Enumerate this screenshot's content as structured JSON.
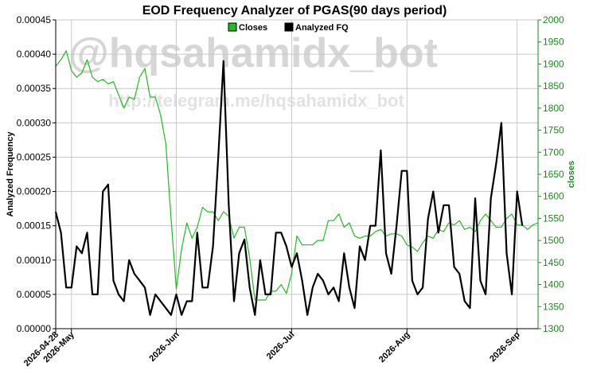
{
  "watermark": {
    "handle": "@hqsahamidx_bot",
    "url": "http://telegram.me/hqsahamidx_bot"
  },
  "colors": {
    "closes": "#22bb22",
    "fq": "#000000",
    "grid": "#c8c8c8",
    "right_axis": "#1a8a1a"
  },
  "chart_data": {
    "type": "line",
    "title": "EOD Frequency Analyzer of PGAS(90 days period)",
    "ylabel": "Analyzed Frequency",
    "ylabel_right": "closes",
    "ylim": [
      0,
      0.00045
    ],
    "ylim_right": [
      1300,
      2000
    ],
    "yticks": [
      "0.00000",
      "0.00005",
      "0.00010",
      "0.00015",
      "0.00020",
      "0.00025",
      "0.00030",
      "0.00035",
      "0.00040",
      "0.00045"
    ],
    "yticks_right": [
      "1300",
      "1350",
      "1400",
      "1450",
      "1500",
      "1550",
      "1600",
      "1650",
      "1700",
      "1750",
      "1800",
      "1850",
      "1900",
      "1950",
      "2000"
    ],
    "xticks": [
      {
        "label": "2026-04-28",
        "index": 0
      },
      {
        "label": "2026-May",
        "index": 3
      },
      {
        "label": "2026-Jun",
        "index": 23
      },
      {
        "label": "2026-Jul",
        "index": 45
      },
      {
        "label": "2026-Aug",
        "index": 67
      },
      {
        "label": "2026-Sep",
        "index": 88
      }
    ],
    "legend": [
      "Closes",
      "Analyzed FQ"
    ],
    "legend_position": "top-center",
    "grid": true,
    "series": [
      {
        "name": "Closes",
        "axis": "right",
        "values": [
          1895,
          1910,
          1930,
          1885,
          1870,
          1880,
          1910,
          1870,
          1860,
          1865,
          1855,
          1860,
          1830,
          1800,
          1825,
          1820,
          1870,
          1890,
          1825,
          1825,
          1785,
          1720,
          1550,
          1390,
          1480,
          1540,
          1505,
          1530,
          1575,
          1565,
          1565,
          1545,
          1565,
          1555,
          1505,
          1530,
          1530,
          1460,
          1365,
          1365,
          1365,
          1385,
          1385,
          1400,
          1380,
          1425,
          1510,
          1490,
          1490,
          1490,
          1500,
          1500,
          1545,
          1545,
          1560,
          1530,
          1540,
          1510,
          1505,
          1510,
          1510,
          1520,
          1525,
          1510,
          1515,
          1515,
          1510,
          1490,
          1485,
          1475,
          1495,
          1510,
          1505,
          1525,
          1520,
          1540,
          1535,
          1545,
          1525,
          1530,
          1520,
          1545,
          1560,
          1545,
          1530,
          1530,
          1550,
          1560,
          1535,
          1535,
          1525,
          1535,
          1540
        ]
      },
      {
        "name": "Analyzed FQ",
        "axis": "left",
        "values": [
          0.00017,
          0.00014,
          6e-05,
          6e-05,
          0.00012,
          0.00011,
          0.00014,
          5e-05,
          5e-05,
          0.0002,
          0.00021,
          7e-05,
          5e-05,
          4e-05,
          0.0001,
          8e-05,
          7e-05,
          6e-05,
          2e-05,
          5e-05,
          4e-05,
          3e-05,
          2e-05,
          5e-05,
          2e-05,
          4e-05,
          4e-05,
          0.00014,
          6e-05,
          6e-05,
          0.00012,
          0.00025,
          0.00039,
          0.00018,
          4e-05,
          0.00011,
          0.00013,
          6e-05,
          2e-05,
          0.0001,
          5e-05,
          5e-05,
          0.00014,
          0.00014,
          0.00012,
          9e-05,
          0.00011,
          7e-05,
          2e-05,
          6e-05,
          8e-05,
          7e-05,
          5e-05,
          6e-05,
          4e-05,
          0.00011,
          6e-05,
          3e-05,
          0.00012,
          0.0001,
          0.00015,
          0.00015,
          0.00026,
          0.00011,
          8e-05,
          0.00015,
          0.00023,
          0.00023,
          7e-05,
          5e-05,
          6e-05,
          0.00016,
          0.0002,
          0.00014,
          0.00018,
          0.00018,
          9e-05,
          8e-05,
          4e-05,
          3e-05,
          0.00019,
          7e-05,
          5e-05,
          0.00019,
          0.00024,
          0.0003,
          0.00011,
          5e-05,
          0.0002,
          0.00015
        ]
      }
    ]
  }
}
